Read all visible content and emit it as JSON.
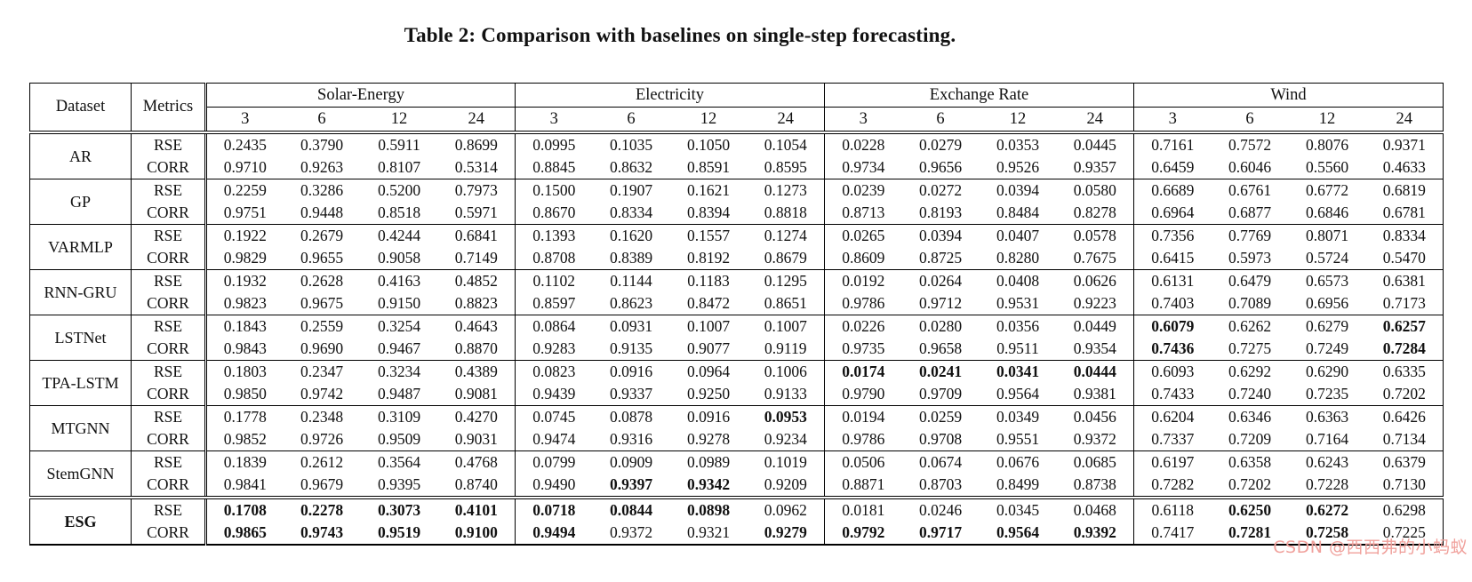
{
  "title": "Table 2: Comparison with baselines on single-step forecasting.",
  "watermark": "CSDN @西西弗的小蚂蚁",
  "colors": {
    "text": "#111111",
    "border": "#000000",
    "watermark": "#f0a09b",
    "background": "#ffffff"
  },
  "chart_data": {
    "type": "table",
    "corner_headers": [
      "Dataset",
      "Metrics"
    ],
    "groups": [
      {
        "label": "Solar-Energy",
        "horizons": [
          "3",
          "6",
          "12",
          "24"
        ]
      },
      {
        "label": "Electricity",
        "horizons": [
          "3",
          "6",
          "12",
          "24"
        ]
      },
      {
        "label": "Exchange Rate",
        "horizons": [
          "3",
          "6",
          "12",
          "24"
        ]
      },
      {
        "label": "Wind",
        "horizons": [
          "3",
          "6",
          "12",
          "24"
        ]
      }
    ],
    "rows": [
      {
        "model": "AR",
        "model_bold": false,
        "divider_above": "double",
        "metrics": [
          {
            "name": "RSE",
            "values": [
              "0.2435",
              "0.3790",
              "0.5911",
              "0.8699",
              "0.0995",
              "0.1035",
              "0.1050",
              "0.1054",
              "0.0228",
              "0.0279",
              "0.0353",
              "0.0445",
              "0.7161",
              "0.7572",
              "0.8076",
              "0.9371"
            ],
            "bold": []
          },
          {
            "name": "CORR",
            "values": [
              "0.9710",
              "0.9263",
              "0.8107",
              "0.5314",
              "0.8845",
              "0.8632",
              "0.8591",
              "0.8595",
              "0.9734",
              "0.9656",
              "0.9526",
              "0.9357",
              "0.6459",
              "0.6046",
              "0.5560",
              "0.4633"
            ],
            "bold": []
          }
        ]
      },
      {
        "model": "GP",
        "model_bold": false,
        "divider_above": "single",
        "metrics": [
          {
            "name": "RSE",
            "values": [
              "0.2259",
              "0.3286",
              "0.5200",
              "0.7973",
              "0.1500",
              "0.1907",
              "0.1621",
              "0.1273",
              "0.0239",
              "0.0272",
              "0.0394",
              "0.0580",
              "0.6689",
              "0.6761",
              "0.6772",
              "0.6819"
            ],
            "bold": []
          },
          {
            "name": "CORR",
            "values": [
              "0.9751",
              "0.9448",
              "0.8518",
              "0.5971",
              "0.8670",
              "0.8334",
              "0.8394",
              "0.8818",
              "0.8713",
              "0.8193",
              "0.8484",
              "0.8278",
              "0.6964",
              "0.6877",
              "0.6846",
              "0.6781"
            ],
            "bold": []
          }
        ]
      },
      {
        "model": "VARMLP",
        "model_bold": false,
        "divider_above": "single",
        "metrics": [
          {
            "name": "RSE",
            "values": [
              "0.1922",
              "0.2679",
              "0.4244",
              "0.6841",
              "0.1393",
              "0.1620",
              "0.1557",
              "0.1274",
              "0.0265",
              "0.0394",
              "0.0407",
              "0.0578",
              "0.7356",
              "0.7769",
              "0.8071",
              "0.8334"
            ],
            "bold": []
          },
          {
            "name": "CORR",
            "values": [
              "0.9829",
              "0.9655",
              "0.9058",
              "0.7149",
              "0.8708",
              "0.8389",
              "0.8192",
              "0.8679",
              "0.8609",
              "0.8725",
              "0.8280",
              "0.7675",
              "0.6415",
              "0.5973",
              "0.5724",
              "0.5470"
            ],
            "bold": []
          }
        ]
      },
      {
        "model": "RNN-GRU",
        "model_bold": false,
        "divider_above": "single",
        "metrics": [
          {
            "name": "RSE",
            "values": [
              "0.1932",
              "0.2628",
              "0.4163",
              "0.4852",
              "0.1102",
              "0.1144",
              "0.1183",
              "0.1295",
              "0.0192",
              "0.0264",
              "0.0408",
              "0.0626",
              "0.6131",
              "0.6479",
              "0.6573",
              "0.6381"
            ],
            "bold": []
          },
          {
            "name": "CORR",
            "values": [
              "0.9823",
              "0.9675",
              "0.9150",
              "0.8823",
              "0.8597",
              "0.8623",
              "0.8472",
              "0.8651",
              "0.9786",
              "0.9712",
              "0.9531",
              "0.9223",
              "0.7403",
              "0.7089",
              "0.6956",
              "0.7173"
            ],
            "bold": []
          }
        ]
      },
      {
        "model": "LSTNet",
        "model_bold": false,
        "divider_above": "single",
        "metrics": [
          {
            "name": "RSE",
            "values": [
              "0.1843",
              "0.2559",
              "0.3254",
              "0.4643",
              "0.0864",
              "0.0931",
              "0.1007",
              "0.1007",
              "0.0226",
              "0.0280",
              "0.0356",
              "0.0449",
              "0.6079",
              "0.6262",
              "0.6279",
              "0.6257"
            ],
            "bold": [
              12,
              15
            ]
          },
          {
            "name": "CORR",
            "values": [
              "0.9843",
              "0.9690",
              "0.9467",
              "0.8870",
              "0.9283",
              "0.9135",
              "0.9077",
              "0.9119",
              "0.9735",
              "0.9658",
              "0.9511",
              "0.9354",
              "0.7436",
              "0.7275",
              "0.7249",
              "0.7284"
            ],
            "bold": [
              12,
              15
            ]
          }
        ]
      },
      {
        "model": "TPA-LSTM",
        "model_bold": false,
        "divider_above": "single",
        "metrics": [
          {
            "name": "RSE",
            "values": [
              "0.1803",
              "0.2347",
              "0.3234",
              "0.4389",
              "0.0823",
              "0.0916",
              "0.0964",
              "0.1006",
              "0.0174",
              "0.0241",
              "0.0341",
              "0.0444",
              "0.6093",
              "0.6292",
              "0.6290",
              "0.6335"
            ],
            "bold": [
              8,
              9,
              10,
              11
            ]
          },
          {
            "name": "CORR",
            "values": [
              "0.9850",
              "0.9742",
              "0.9487",
              "0.9081",
              "0.9439",
              "0.9337",
              "0.9250",
              "0.9133",
              "0.9790",
              "0.9709",
              "0.9564",
              "0.9381",
              "0.7433",
              "0.7240",
              "0.7235",
              "0.7202"
            ],
            "bold": []
          }
        ]
      },
      {
        "model": "MTGNN",
        "model_bold": false,
        "divider_above": "single",
        "metrics": [
          {
            "name": "RSE",
            "values": [
              "0.1778",
              "0.2348",
              "0.3109",
              "0.4270",
              "0.0745",
              "0.0878",
              "0.0916",
              "0.0953",
              "0.0194",
              "0.0259",
              "0.0349",
              "0.0456",
              "0.6204",
              "0.6346",
              "0.6363",
              "0.6426"
            ],
            "bold": [
              7
            ]
          },
          {
            "name": "CORR",
            "values": [
              "0.9852",
              "0.9726",
              "0.9509",
              "0.9031",
              "0.9474",
              "0.9316",
              "0.9278",
              "0.9234",
              "0.9786",
              "0.9708",
              "0.9551",
              "0.9372",
              "0.7337",
              "0.7209",
              "0.7164",
              "0.7134"
            ],
            "bold": []
          }
        ]
      },
      {
        "model": "StemGNN",
        "model_bold": false,
        "divider_above": "single",
        "metrics": [
          {
            "name": "RSE",
            "values": [
              "0.1839",
              "0.2612",
              "0.3564",
              "0.4768",
              "0.0799",
              "0.0909",
              "0.0989",
              "0.1019",
              "0.0506",
              "0.0674",
              "0.0676",
              "0.0685",
              "0.6197",
              "0.6358",
              "0.6243",
              "0.6379"
            ],
            "bold": []
          },
          {
            "name": "CORR",
            "values": [
              "0.9841",
              "0.9679",
              "0.9395",
              "0.8740",
              "0.9490",
              "0.9397",
              "0.9342",
              "0.9209",
              "0.8871",
              "0.8703",
              "0.8499",
              "0.8738",
              "0.7282",
              "0.7202",
              "0.7228",
              "0.7130"
            ],
            "bold": [
              5,
              6
            ]
          }
        ]
      },
      {
        "model": "ESG",
        "model_bold": true,
        "divider_above": "double",
        "metrics": [
          {
            "name": "RSE",
            "values": [
              "0.1708",
              "0.2278",
              "0.3073",
              "0.4101",
              "0.0718",
              "0.0844",
              "0.0898",
              "0.0962",
              "0.0181",
              "0.0246",
              "0.0345",
              "0.0468",
              "0.6118",
              "0.6250",
              "0.6272",
              "0.6298"
            ],
            "bold": [
              0,
              1,
              2,
              3,
              4,
              5,
              6,
              13,
              14
            ]
          },
          {
            "name": "CORR",
            "values": [
              "0.9865",
              "0.9743",
              "0.9519",
              "0.9100",
              "0.9494",
              "0.9372",
              "0.9321",
              "0.9279",
              "0.9792",
              "0.9717",
              "0.9564",
              "0.9392",
              "0.7417",
              "0.7281",
              "0.7258",
              "0.7225"
            ],
            "bold": [
              0,
              1,
              2,
              3,
              4,
              7,
              8,
              9,
              10,
              11,
              13,
              14
            ]
          }
        ]
      }
    ]
  }
}
